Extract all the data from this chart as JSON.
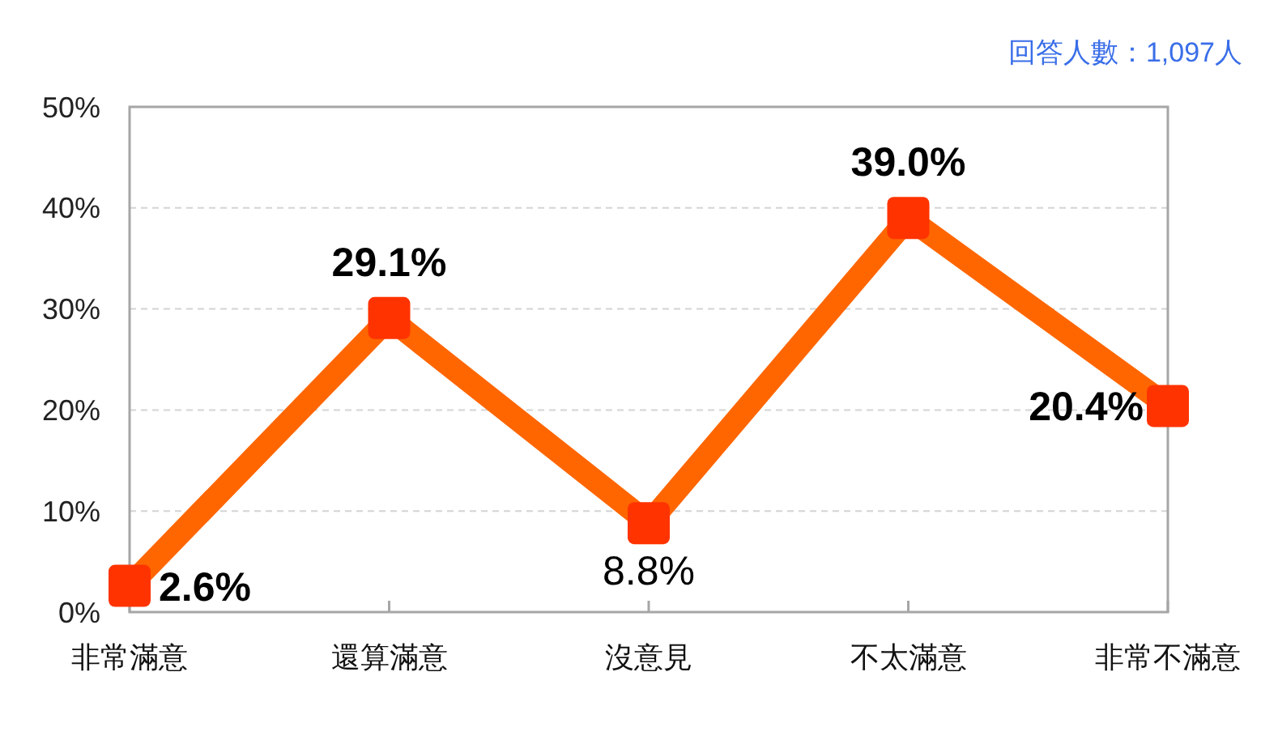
{
  "chart_data": {
    "type": "line",
    "categories": [
      "非常滿意",
      "還算滿意",
      "沒意見",
      "不太滿意",
      "非常不滿意"
    ],
    "series": [
      {
        "color": "#ff6600",
        "values": [
          2.6,
          29.1,
          8.8,
          39.0,
          20.4
        ],
        "value_labels": [
          "2.6%",
          "29.1%",
          "8.8%",
          "39.0%",
          "20.4%"
        ]
      }
    ],
    "ylim": [
      0,
      50
    ],
    "yticks": [
      {
        "value": 0,
        "label": "0%"
      },
      {
        "value": 10,
        "label": "10%"
      },
      {
        "value": 20,
        "label": "20%"
      },
      {
        "value": 30,
        "label": "30%"
      },
      {
        "value": 40,
        "label": "40%"
      },
      {
        "value": 50,
        "label": "50%"
      }
    ],
    "grid": "y",
    "marker": "square",
    "line_style": "solid",
    "annotations": [
      "回答人數：1,097人"
    ]
  }
}
